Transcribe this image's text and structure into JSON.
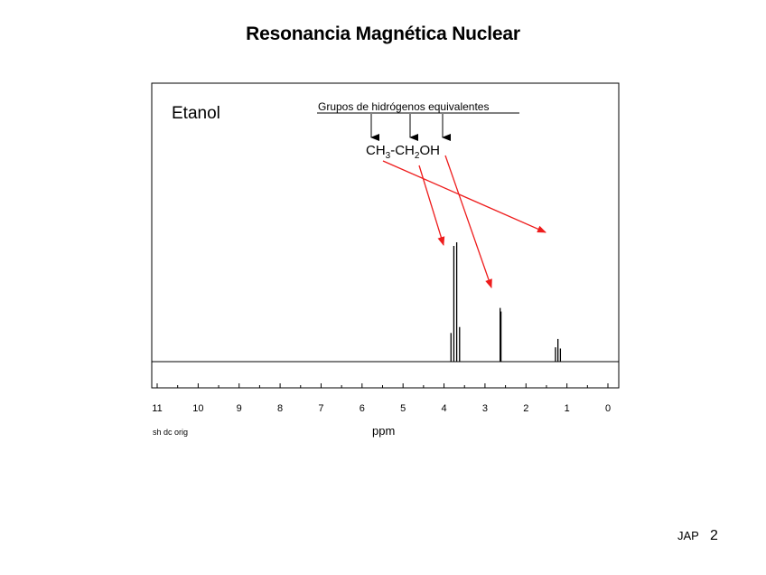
{
  "slide": {
    "title": "Resonancia Magnética Nuclear",
    "author": "JAP",
    "page_number": "2"
  },
  "chart_data": {
    "type": "line",
    "compound_label": "Etanol",
    "annotation_header": "Grupos de hidrógenos equivalentes",
    "formula": {
      "parts": [
        {
          "text": "CH",
          "sub": "3"
        },
        {
          "text": "-CH",
          "sub": "2"
        },
        {
          "text": "OH",
          "sub": ""
        }
      ]
    },
    "xlabel": "ppm",
    "small_label": "sh dc orig",
    "x_reversed": true,
    "xlim": [
      11,
      0
    ],
    "ylim": [
      0,
      1.05
    ],
    "x_ticks": [
      11,
      10,
      9,
      8,
      7,
      6,
      5,
      4,
      3,
      2,
      1,
      0
    ],
    "peaks": [
      {
        "group": "CH2",
        "x": 3.83,
        "height": 0.24
      },
      {
        "group": "CH2",
        "x": 3.76,
        "height": 0.97
      },
      {
        "group": "CH2",
        "x": 3.69,
        "height": 1.0
      },
      {
        "group": "CH2",
        "x": 3.62,
        "height": 0.29
      },
      {
        "group": "OH",
        "x": 2.63,
        "height": 0.45
      },
      {
        "group": "OH",
        "x": 2.61,
        "height": 0.42
      },
      {
        "group": "CH3",
        "x": 1.28,
        "height": 0.12
      },
      {
        "group": "CH3",
        "x": 1.22,
        "height": 0.19
      },
      {
        "group": "CH3",
        "x": 1.16,
        "height": 0.11
      }
    ],
    "colors": {
      "arrow": "#ee1c1c",
      "line": "#000000"
    }
  }
}
